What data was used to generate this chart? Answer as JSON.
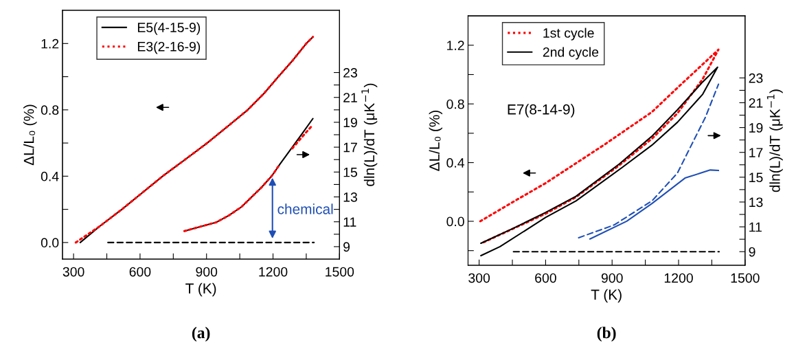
{
  "chart_data": [
    {
      "type": "line",
      "xlabel": "T (K)",
      "ylabel": "ΔL/L₀ (%)",
      "y2label": "dln(L)/dT (μK$^{−1}$)",
      "legend": "top left",
      "xlim": [
        250,
        1500
      ],
      "xticks": [
        300,
        {
          "value": 450,
          "label": null
        },
        600,
        {
          "value": 750,
          "label": null
        },
        900,
        {
          "value": 1050,
          "label": null
        },
        1200,
        {
          "value": 1350,
          "label": null
        },
        1500
      ],
      "ylim": [
        -0.1,
        1.4
      ],
      "yticks": [
        {
          "value": 0.0,
          "label": "0.0"
        },
        {
          "value": 0.2,
          "label": null
        },
        0.4,
        {
          "value": 0.6,
          "label": null
        },
        0.8,
        {
          "value": 1.0,
          "label": null
        },
        1.2
      ],
      "y2lim": [
        8,
        28
      ],
      "y2ticks": [
        9,
        {
          "value": 10,
          "label": null
        },
        11,
        {
          "value": 12,
          "label": null
        },
        13,
        {
          "value": 14,
          "label": null
        },
        15,
        {
          "value": 16,
          "label": null
        },
        17,
        {
          "value": 18,
          "label": null
        },
        19,
        {
          "value": 20,
          "label": null
        },
        21,
        {
          "value": 22,
          "label": null
        },
        23
      ],
      "annotations": [
        "(a)",
        "chemical"
      ],
      "series": [
        {
          "name": "E5(4-15-9)",
          "color": "#000000",
          "line_style": "solid",
          "x": [
            330,
            420,
            518,
            610,
            702,
            803,
            903,
            995,
            1086,
            1160,
            1224,
            1290,
            1350,
            1380
          ],
          "values": [
            0.0,
            0.1,
            0.2,
            0.3,
            0.4,
            0.5,
            0.6,
            0.7,
            0.8,
            0.9,
            1.0,
            1.1,
            1.2,
            1.24
          ]
        },
        {
          "name": "E3(2-16-9)",
          "color": "#ff0000",
          "line_style": "dotted",
          "x": [
            310,
            420,
            518,
            610,
            702,
            803,
            903,
            995,
            1086,
            1160,
            1224,
            1290,
            1350,
            1380
          ],
          "values": [
            0.0,
            0.1,
            0.2,
            0.3,
            0.4,
            0.5,
            0.6,
            0.7,
            0.8,
            0.9,
            1.0,
            1.1,
            1.2,
            1.24
          ]
        },
        {
          "color": "#000000",
          "line_style": "solid",
          "axis": "y2",
          "x": [
            800,
            850,
            943,
            1000,
            1058,
            1150,
            1195,
            1230,
            1287,
            1340,
            1380
          ],
          "values": [
            10.25,
            10.5,
            10.95,
            11.5,
            12.2,
            13.8,
            14.7,
            15.6,
            17.0,
            18.3,
            19.3
          ]
        },
        {
          "color": "#ff0000",
          "line_style": "dotted",
          "axis": "y2",
          "x": [
            800,
            850,
            943,
            1000,
            1058,
            1150,
            1195,
            1230,
            1260,
            1287,
            1340,
            1380
          ],
          "values": [
            10.25,
            10.5,
            10.95,
            11.5,
            12.2,
            13.8,
            14.7,
            15.6,
            null,
            16.9,
            18.0,
            18.8
          ]
        },
        {
          "color": "#000000",
          "line_style": "dashed",
          "x": [
            455,
            1385
          ],
          "values": [
            0.0,
            0.0
          ]
        }
      ]
    },
    {
      "type": "line",
      "xlabel": "T (K)",
      "ylabel": "ΔL/L₀ (%)",
      "y2label": "dln(L)/dT (μK$^{−1}$)",
      "legend": "top left",
      "xlim": [
        250,
        1500
      ],
      "xticks": [
        300,
        {
          "value": 450,
          "label": null
        },
        600,
        {
          "value": 750,
          "label": null
        },
        900,
        {
          "value": 1050,
          "label": null
        },
        1200,
        {
          "value": 1350,
          "label": null
        },
        1500
      ],
      "ylim": [
        -0.3,
        1.4
      ],
      "yticks": [
        {
          "value": -0.2,
          "label": null
        },
        {
          "value": 0.0,
          "label": "0.0"
        },
        {
          "value": 0.2,
          "label": null
        },
        0.4,
        {
          "value": 0.6,
          "label": null
        },
        0.8,
        {
          "value": 1.0,
          "label": null
        },
        1.2
      ],
      "y2lim": [
        7.9,
        28
      ],
      "y2ticks": [
        9,
        {
          "value": 10,
          "label": null
        },
        11,
        {
          "value": 12,
          "label": null
        },
        13,
        {
          "value": 14,
          "label": null
        },
        15,
        {
          "value": 16,
          "label": null
        },
        17,
        {
          "value": 18,
          "label": null
        },
        19,
        {
          "value": 20,
          "label": null
        },
        21,
        {
          "value": 22,
          "label": null
        },
        23
      ],
      "annotations": [
        "(b)",
        "E7(8-14-9)"
      ],
      "series": [
        {
          "name": "1st cycle",
          "color": "#ff0000",
          "line_style": "dotted",
          "x": [
            305,
            462,
            600,
            863,
            1080,
            1195,
            1309,
            1380,
            1309,
            1195,
            1080,
            932,
            737,
            600,
            451,
            314
          ],
          "values": [
            0.0,
            0.14,
            0.26,
            0.52,
            0.745,
            0.91,
            1.07,
            1.17,
            0.97,
            0.736,
            0.563,
            0.381,
            0.165,
            0.052,
            -0.052,
            -0.147
          ]
        },
        {
          "name": "2nd cycle",
          "color": "#000000",
          "line_style": "solid",
          "x": [
            308,
            451,
            600,
            737,
            932,
            1080,
            1195,
            1309,
            1376,
            1309,
            1195,
            1080,
            943,
            737,
            600,
            394,
            308
          ],
          "values": [
            -0.15,
            -0.05,
            0.06,
            0.17,
            0.39,
            0.58,
            0.76,
            0.95,
            1.05,
            0.866,
            0.675,
            0.519,
            0.364,
            0.139,
            0.026,
            -0.173,
            -0.234
          ]
        },
        {
          "color": "#1f4fb5",
          "line_style": "dashed",
          "axis": "y2",
          "x": [
            749,
            909,
            1080,
            1195,
            1252,
            1321,
            1380
          ],
          "values": [
            10.12,
            11.15,
            13.09,
            15.34,
            17.38,
            19.83,
            22.49
          ]
        },
        {
          "color": "#1f4fb5",
          "line_style": "solid",
          "axis": "y2",
          "x": [
            800,
            966,
            1080,
            1229,
            1343,
            1380
          ],
          "values": [
            10.02,
            11.45,
            12.88,
            14.93,
            15.58,
            15.54
          ]
        },
        {
          "color": "#000000",
          "line_style": "dashed",
          "axis": "y2",
          "x": [
            455,
            1383
          ],
          "values": [
            9.0,
            9.0
          ]
        }
      ]
    }
  ]
}
